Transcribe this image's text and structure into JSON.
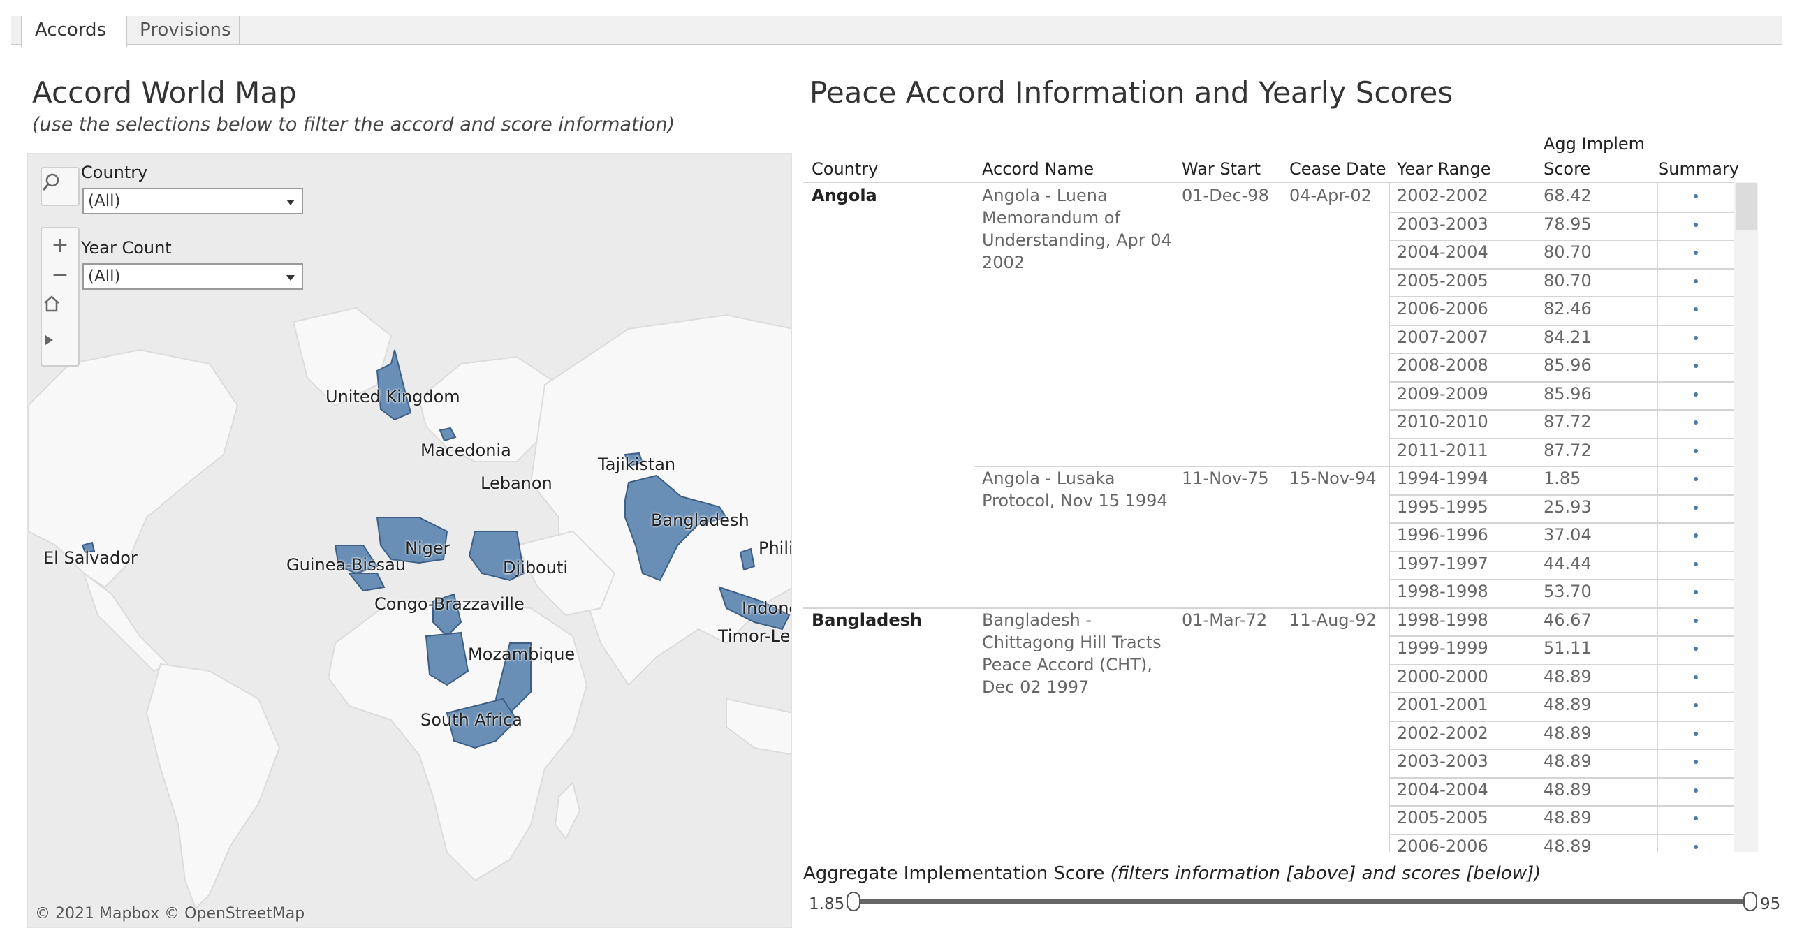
{
  "tabs": [
    {
      "label": "Accords"
    },
    {
      "label": "Provisions"
    }
  ],
  "map_panel": {
    "title": "Accord World Map",
    "subtitle": "(use the selections below to filter the accord and score information)",
    "attribution": "© 2021 Mapbox  © OpenStreetMap",
    "filters": {
      "country_label": "Country",
      "country_value": "(All)",
      "year_count_label": "Year Count",
      "year_count_value": "(All)"
    },
    "labels": [
      "United Kingdom",
      "Macedonia",
      "Lebanon",
      "Tajikistan",
      "Bangladesh",
      "Philippines",
      "Niger",
      "Guinea-Bissau",
      "Djibouti",
      "El Salvador",
      "Congo-Brazzaville",
      "Mozambique",
      "South Africa",
      "Indonesia",
      "Timor-Leste"
    ],
    "highlight_color": "#6a8fb6"
  },
  "table_panel": {
    "title": "Peace Accord Information and Yearly Scores",
    "headers": {
      "country": "Country",
      "accord_name": "Accord Name",
      "war_start": "War Start",
      "cease_date": "Cease Date",
      "year_range": "Year Range",
      "score_line1": "Agg Implem",
      "score_line2": "Score",
      "summary": "Summary"
    },
    "groups": [
      {
        "country": "Angola",
        "accords": [
          {
            "name": "Angola - Luena Memorandum of Understanding, Apr 04 2002",
            "war_start": "01-Dec-98",
            "cease_date": "04-Apr-02",
            "rows": [
              {
                "year": "2002-2002",
                "score": "68.42"
              },
              {
                "year": "2003-2003",
                "score": "78.95"
              },
              {
                "year": "2004-2004",
                "score": "80.70"
              },
              {
                "year": "2005-2005",
                "score": "80.70"
              },
              {
                "year": "2006-2006",
                "score": "82.46"
              },
              {
                "year": "2007-2007",
                "score": "84.21"
              },
              {
                "year": "2008-2008",
                "score": "85.96"
              },
              {
                "year": "2009-2009",
                "score": "85.96"
              },
              {
                "year": "2010-2010",
                "score": "87.72"
              },
              {
                "year": "2011-2011",
                "score": "87.72"
              }
            ]
          },
          {
            "name": "Angola - Lusaka Protocol, Nov 15 1994",
            "war_start": "11-Nov-75",
            "cease_date": "15-Nov-94",
            "rows": [
              {
                "year": "1994-1994",
                "score": "1.85"
              },
              {
                "year": "1995-1995",
                "score": "25.93"
              },
              {
                "year": "1996-1996",
                "score": "37.04"
              },
              {
                "year": "1997-1997",
                "score": "44.44"
              },
              {
                "year": "1998-1998",
                "score": "53.70"
              }
            ]
          }
        ]
      },
      {
        "country": "Bangladesh",
        "accords": [
          {
            "name": "Bangladesh - Chittagong Hill Tracts Peace Accord (CHT), Dec 02 1997",
            "war_start": "01-Mar-72",
            "cease_date": "11-Aug-92",
            "rows": [
              {
                "year": "1998-1998",
                "score": "46.67"
              },
              {
                "year": "1999-1999",
                "score": "51.11"
              },
              {
                "year": "2000-2000",
                "score": "48.89"
              },
              {
                "year": "2001-2001",
                "score": "48.89"
              },
              {
                "year": "2002-2002",
                "score": "48.89"
              },
              {
                "year": "2003-2003",
                "score": "48.89"
              },
              {
                "year": "2004-2004",
                "score": "48.89"
              },
              {
                "year": "2005-2005",
                "score": "48.89"
              },
              {
                "year": "2006-2006",
                "score": "48.89"
              }
            ]
          }
        ]
      }
    ],
    "summary_dot_color": "#4e79a7"
  },
  "slider": {
    "label": "Aggregate Implementation Score",
    "note": "(filters information [above] and scores [below])",
    "min": "1.85",
    "max": "95"
  }
}
